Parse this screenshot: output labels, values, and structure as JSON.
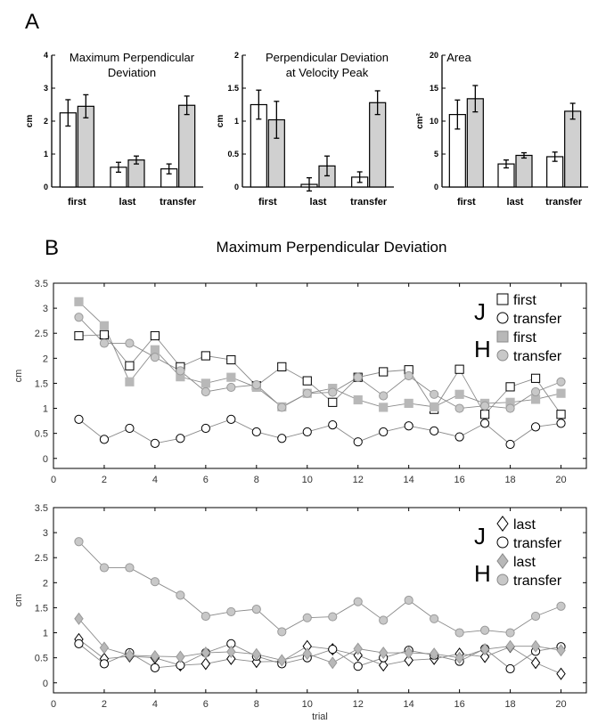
{
  "panel_labels": {
    "a": "A",
    "b": "B"
  },
  "section_b_title": "Maximum Perpendicular Deviation",
  "chart_data": [
    {
      "id": "bar1",
      "type": "bar",
      "title_lines": [
        "Maximum Perpendicular",
        "Deviation"
      ],
      "ylabel": "cm",
      "categories": [
        "first",
        "last",
        "transfer"
      ],
      "ylim": [
        0,
        4
      ],
      "yticks": [
        0,
        1,
        2,
        3,
        4
      ],
      "ytick_labels": [
        "0",
        "1",
        "2",
        "3",
        "4"
      ],
      "series": [
        {
          "fill": "#ffffff",
          "values": [
            2.25,
            0.6,
            0.55
          ],
          "errors": [
            0.4,
            0.15,
            0.15
          ]
        },
        {
          "fill": "#d0d0d0",
          "values": [
            2.45,
            0.82,
            2.48
          ],
          "errors": [
            0.35,
            0.12,
            0.28
          ]
        }
      ]
    },
    {
      "id": "bar2",
      "type": "bar",
      "title_lines": [
        "Perpendicular Deviation",
        "at Velocity Peak"
      ],
      "ylabel": "cm",
      "categories": [
        "first",
        "last",
        "transfer"
      ],
      "ylim": [
        0,
        2
      ],
      "yticks": [
        0,
        0.5,
        1,
        1.5,
        2
      ],
      "ytick_labels": [
        "0",
        "0.5",
        "1",
        "1.5",
        "2"
      ],
      "series": [
        {
          "fill": "#ffffff",
          "values": [
            1.25,
            0.04,
            0.15
          ],
          "errors": [
            0.22,
            0.1,
            0.08
          ]
        },
        {
          "fill": "#d0d0d0",
          "values": [
            1.02,
            0.32,
            1.28
          ],
          "errors": [
            0.28,
            0.15,
            0.18
          ]
        }
      ]
    },
    {
      "id": "bar3",
      "type": "bar",
      "title_lines": [
        "Area"
      ],
      "ylabel": "cm²",
      "categories": [
        "first",
        "last",
        "transfer"
      ],
      "ylim": [
        0,
        20
      ],
      "yticks": [
        0,
        5,
        10,
        15,
        20
      ],
      "ytick_labels": [
        "0",
        "5",
        "10",
        "15",
        "20"
      ],
      "series": [
        {
          "fill": "#ffffff",
          "values": [
            11.0,
            3.5,
            4.6
          ],
          "errors": [
            2.2,
            0.6,
            0.7
          ]
        },
        {
          "fill": "#d0d0d0",
          "values": [
            13.4,
            4.8,
            11.5
          ],
          "errors": [
            2.0,
            0.4,
            1.2
          ]
        }
      ]
    },
    {
      "id": "line1",
      "type": "line",
      "ylabel": "cm",
      "xlabel": "",
      "xlim": [
        0,
        21
      ],
      "ylim": [
        -0.2,
        3.5
      ],
      "xticks": [
        0,
        2,
        4,
        6,
        8,
        10,
        12,
        14,
        16,
        18,
        20
      ],
      "yticks": [
        0,
        0.5,
        1,
        1.5,
        2,
        2.5,
        3,
        3.5
      ],
      "ytick_labels": [
        "0",
        "0.5",
        "1",
        "1.5",
        "2",
        "2.5",
        "3",
        "3.5"
      ],
      "x": [
        1,
        2,
        3,
        4,
        5,
        6,
        7,
        8,
        9,
        10,
        11,
        12,
        13,
        14,
        15,
        16,
        17,
        18,
        19,
        20
      ],
      "legend": [
        {
          "group": "J",
          "marker": "square",
          "fill": "#ffffff",
          "label": "first"
        },
        {
          "group": "",
          "marker": "circle",
          "fill": "#ffffff",
          "label": "transfer"
        },
        {
          "group": "H",
          "marker": "square",
          "fill": "#b8b8b8",
          "label": "first"
        },
        {
          "group": "",
          "marker": "circle",
          "fill": "#c8c8c8",
          "label": "transfer"
        }
      ],
      "series": [
        {
          "marker": "square",
          "fill": "#ffffff",
          "stroke": "#000000",
          "values": [
            2.45,
            2.47,
            1.85,
            2.45,
            1.83,
            2.05,
            1.97,
            1.45,
            1.83,
            1.55,
            1.12,
            1.62,
            1.73,
            1.77,
            0.98,
            1.78,
            0.88,
            1.43,
            1.6,
            0.88
          ]
        },
        {
          "marker": "circle",
          "fill": "#ffffff",
          "stroke": "#000000",
          "values": [
            0.78,
            0.38,
            0.6,
            0.3,
            0.4,
            0.6,
            0.78,
            0.53,
            0.4,
            0.53,
            0.67,
            0.33,
            0.53,
            0.65,
            0.55,
            0.43,
            0.7,
            0.28,
            0.63,
            0.7
          ]
        },
        {
          "marker": "square",
          "fill": "#b8b8b8",
          "stroke": "#b8b8b8",
          "values": [
            3.13,
            2.65,
            1.53,
            2.17,
            1.63,
            1.5,
            1.62,
            1.42,
            1.03,
            1.3,
            1.4,
            1.17,
            1.02,
            1.1,
            1.03,
            1.28,
            1.1,
            1.12,
            1.18,
            1.3
          ]
        },
        {
          "marker": "circle",
          "fill": "#c8c8c8",
          "stroke": "#9a9a9a",
          "values": [
            2.82,
            2.3,
            2.3,
            2.02,
            1.75,
            1.33,
            1.42,
            1.47,
            1.02,
            1.3,
            1.32,
            1.62,
            1.25,
            1.65,
            1.28,
            1.0,
            1.05,
            1.0,
            1.33,
            1.53
          ]
        }
      ]
    },
    {
      "id": "line2",
      "type": "line",
      "ylabel": "cm",
      "xlabel": "trial",
      "xlim": [
        0,
        21
      ],
      "ylim": [
        -0.2,
        3.5
      ],
      "xticks": [
        0,
        2,
        4,
        6,
        8,
        10,
        12,
        14,
        16,
        18,
        20
      ],
      "yticks": [
        0,
        0.5,
        1,
        1.5,
        2,
        2.5,
        3,
        3.5
      ],
      "ytick_labels": [
        "0",
        "0.5",
        "1",
        "1.5",
        "2",
        "2.5",
        "3",
        "3.5"
      ],
      "x": [
        1,
        2,
        3,
        4,
        5,
        6,
        7,
        8,
        9,
        10,
        11,
        12,
        13,
        14,
        15,
        16,
        17,
        18,
        19,
        20
      ],
      "legend": [
        {
          "group": "J",
          "marker": "diamond",
          "fill": "#ffffff",
          "label": "last"
        },
        {
          "group": "",
          "marker": "circle",
          "fill": "#ffffff",
          "label": "transfer"
        },
        {
          "group": "H",
          "marker": "diamond",
          "fill": "#b8b8b8",
          "label": "last"
        },
        {
          "group": "",
          "marker": "circle",
          "fill": "#c8c8c8",
          "label": "transfer"
        }
      ],
      "series": [
        {
          "marker": "diamond",
          "fill": "#ffffff",
          "stroke": "#000000",
          "values": [
            0.87,
            0.48,
            0.53,
            0.5,
            0.35,
            0.38,
            0.48,
            0.42,
            0.43,
            0.73,
            0.67,
            0.55,
            0.35,
            0.45,
            0.48,
            0.58,
            0.52,
            0.72,
            0.4,
            0.18
          ]
        },
        {
          "marker": "circle",
          "fill": "#ffffff",
          "stroke": "#000000",
          "values": [
            0.78,
            0.38,
            0.6,
            0.3,
            0.35,
            0.6,
            0.78,
            0.53,
            0.38,
            0.5,
            0.67,
            0.33,
            0.5,
            0.65,
            0.55,
            0.43,
            0.68,
            0.28,
            0.63,
            0.72
          ]
        },
        {
          "marker": "diamond",
          "fill": "#b8b8b8",
          "stroke": "#9a9a9a",
          "values": [
            1.28,
            0.7,
            0.55,
            0.53,
            0.52,
            0.6,
            0.62,
            0.57,
            0.45,
            0.58,
            0.4,
            0.68,
            0.6,
            0.6,
            0.58,
            0.5,
            0.67,
            0.73,
            0.73,
            0.65
          ]
        },
        {
          "marker": "circle",
          "fill": "#c8c8c8",
          "stroke": "#9a9a9a",
          "values": [
            2.82,
            2.3,
            2.3,
            2.02,
            1.75,
            1.33,
            1.42,
            1.47,
            1.02,
            1.3,
            1.32,
            1.62,
            1.25,
            1.65,
            1.28,
            1.0,
            1.05,
            1.0,
            1.33,
            1.53
          ]
        }
      ]
    }
  ]
}
